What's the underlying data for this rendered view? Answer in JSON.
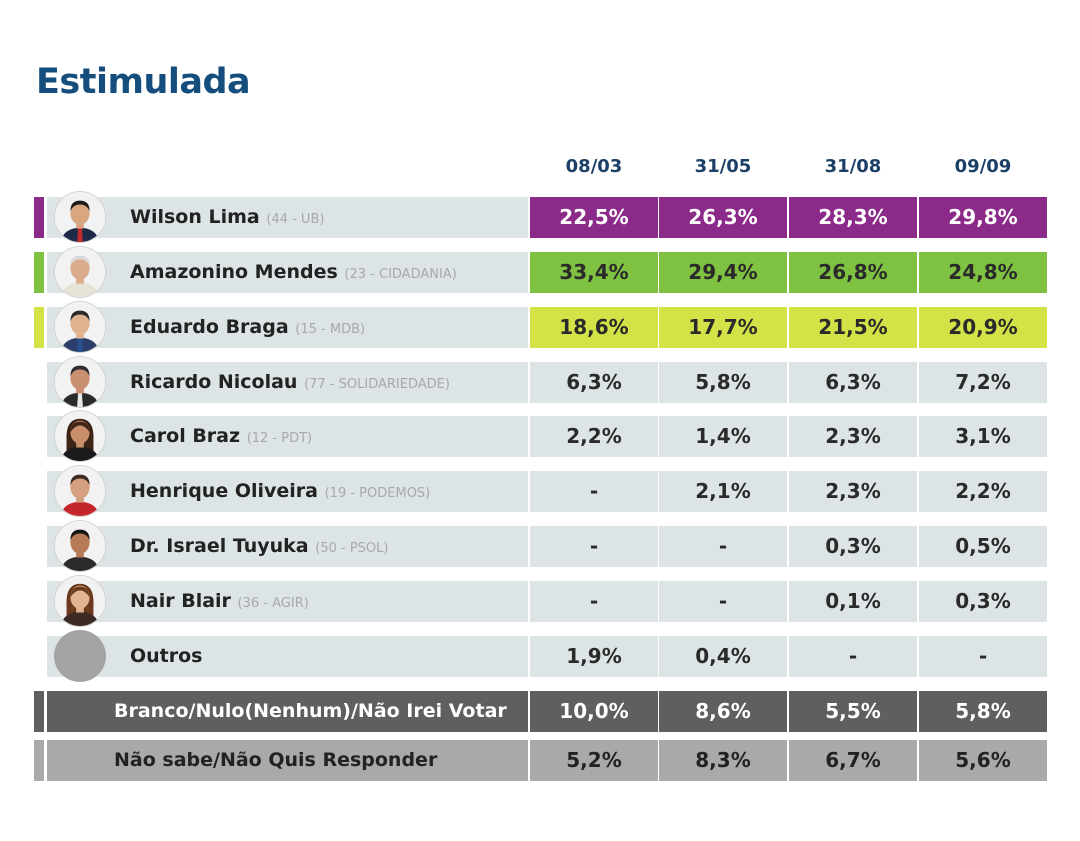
{
  "title": "Estimulada",
  "colors": {
    "title": "#154e7c",
    "header": "#1c3f66",
    "row_bg": "#dde4e6",
    "wilson": "#8b2a88",
    "amazonino": "#7fc241",
    "eduardo": "#d3e247",
    "branco": "#5f5f5f",
    "naosabe": "#a9a9ab",
    "outros_avatar": "#a3a3a3"
  },
  "chart_data": {
    "type": "table",
    "title": "Estimulada",
    "columns": [
      "08/03",
      "31/05",
      "31/08",
      "09/09"
    ],
    "rows": [
      {
        "name": "Wilson Lima",
        "party": "(44 - UB)",
        "values": [
          "22,5%",
          "26,3%",
          "28,3%",
          "29,8%"
        ],
        "color": "#8b2a88",
        "avatar": "wilson-lima-avatar"
      },
      {
        "name": "Amazonino Mendes",
        "party": "(23 - CIDADANIA)",
        "values": [
          "33,4%",
          "29,4%",
          "26,8%",
          "24,8%"
        ],
        "color": "#7fc241",
        "avatar": "amazonino-mendes-avatar"
      },
      {
        "name": "Eduardo Braga",
        "party": "(15 - MDB)",
        "values": [
          "18,6%",
          "17,7%",
          "21,5%",
          "20,9%"
        ],
        "color": "#d3e247",
        "avatar": "eduardo-braga-avatar"
      },
      {
        "name": "Ricardo Nicolau",
        "party": "(77 - SOLIDARIEDADE)",
        "values": [
          "6,3%",
          "5,8%",
          "6,3%",
          "7,2%"
        ],
        "avatar": "ricardo-nicolau-avatar"
      },
      {
        "name": "Carol Braz",
        "party": "(12 - PDT)",
        "values": [
          "2,2%",
          "1,4%",
          "2,3%",
          "3,1%"
        ],
        "avatar": "carol-braz-avatar"
      },
      {
        "name": "Henrique Oliveira",
        "party": "(19 - PODEMOS)",
        "values": [
          "-",
          "2,1%",
          "2,3%",
          "2,2%"
        ],
        "avatar": "henrique-oliveira-avatar"
      },
      {
        "name": "Dr. Israel Tuyuka",
        "party": "(50 - PSOL)",
        "values": [
          "-",
          "-",
          "0,3%",
          "0,5%"
        ],
        "avatar": "israel-tuyuka-avatar"
      },
      {
        "name": "Nair Blair",
        "party": "(36 - AGIR)",
        "values": [
          "-",
          "-",
          "0,1%",
          "0,3%"
        ],
        "avatar": "nair-blair-avatar"
      },
      {
        "name": "Outros",
        "party": "",
        "values": [
          "1,9%",
          "0,4%",
          "-",
          "-"
        ],
        "avatar": "outros-avatar"
      }
    ],
    "footer_rows": [
      {
        "name": "Branco/Nulo(Nenhum)/Não Irei Votar",
        "values": [
          "10,0%",
          "8,6%",
          "5,5%",
          "5,8%"
        ],
        "color": "#5f5f5f"
      },
      {
        "name": "Não sabe/Não Quis Responder",
        "values": [
          "5,2%",
          "8,3%",
          "6,7%",
          "5,6%"
        ],
        "color": "#a9a9ab"
      }
    ]
  }
}
